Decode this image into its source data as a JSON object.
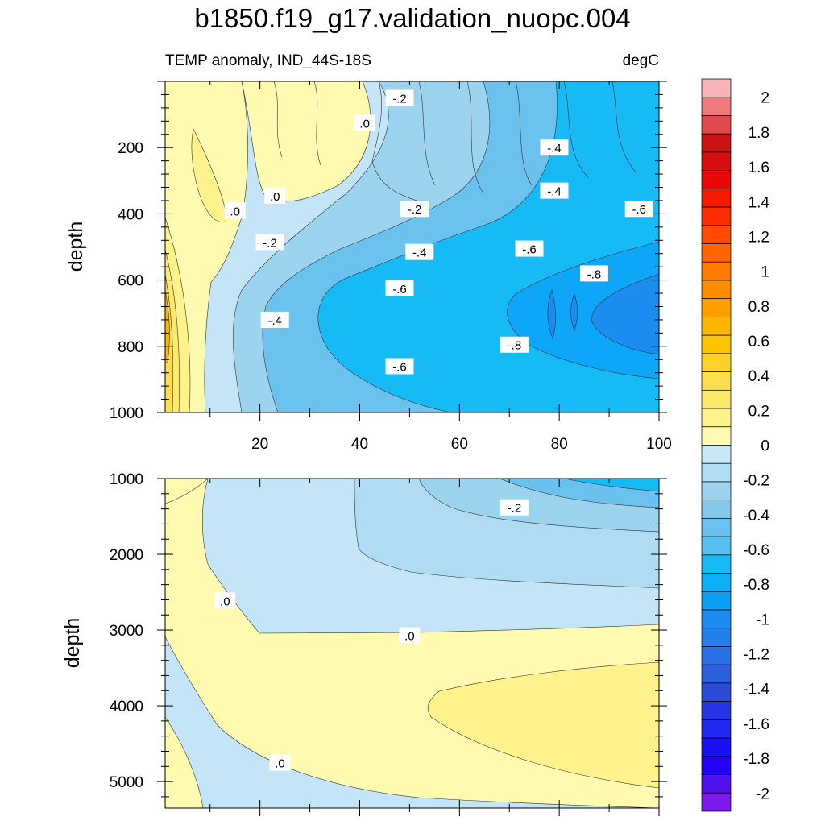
{
  "title": "b1850.f19_g17.validation_nuopc.004",
  "chart_data": {
    "type": "heatmap",
    "upper_panel": {
      "left_label": "TEMP anomaly, IND_44S-18S",
      "right_label": "degC",
      "ylabel": "depth",
      "x_range": [
        1,
        100
      ],
      "y_range": [
        0,
        1000
      ],
      "y_reversed": true,
      "x_ticks": [
        20,
        40,
        60,
        80,
        100
      ],
      "x_tick_labels": [
        "20",
        "40",
        "60",
        "80",
        "100"
      ],
      "y_ticks": [
        200,
        400,
        600,
        800,
        1000
      ],
      "y_tick_labels": [
        "200",
        "400",
        "600",
        "800",
        "1000"
      ],
      "contour_labels": [
        {
          "x": 48,
          "y": 50,
          "text": "-.2"
        },
        {
          "x": 41,
          "y": 125,
          "text": ".0"
        },
        {
          "x": 79,
          "y": 200,
          "text": "-.4"
        },
        {
          "x": 15,
          "y": 390,
          "text": ".0"
        },
        {
          "x": 23,
          "y": 345,
          "text": ".0"
        },
        {
          "x": 51,
          "y": 385,
          "text": "-.2"
        },
        {
          "x": 79,
          "y": 330,
          "text": "-.4"
        },
        {
          "x": 96,
          "y": 385,
          "text": "-.6"
        },
        {
          "x": 22,
          "y": 485,
          "text": "-.2"
        },
        {
          "x": 52,
          "y": 515,
          "text": "-.4"
        },
        {
          "x": 74,
          "y": 505,
          "text": "-.6"
        },
        {
          "x": 87,
          "y": 580,
          "text": "-.8"
        },
        {
          "x": 48,
          "y": 625,
          "text": "-.6"
        },
        {
          "x": 23,
          "y": 720,
          "text": "-.4"
        },
        {
          "x": 71,
          "y": 795,
          "text": "-.8"
        },
        {
          "x": 48,
          "y": 860,
          "text": "-.6"
        }
      ]
    },
    "lower_panel": {
      "ylabel": "depth",
      "x_range": [
        1,
        100
      ],
      "y_range": [
        1000,
        5350
      ],
      "y_reversed": true,
      "y_ticks": [
        1000,
        2000,
        3000,
        4000,
        5000
      ],
      "y_tick_labels": [
        "1000",
        "2000",
        "3000",
        "4000",
        "5000"
      ],
      "contour_labels": [
        {
          "x": 71,
          "y": 1380,
          "text": "-.2"
        },
        {
          "x": 13,
          "y": 2610,
          "text": ".0"
        },
        {
          "x": 50,
          "y": 3070,
          "text": ".0"
        },
        {
          "x": 24,
          "y": 4750,
          "text": ".0"
        }
      ]
    },
    "colorbar": {
      "levels": [
        2,
        1.8,
        1.6,
        1.4,
        1.2,
        1,
        0.8,
        0.6,
        0.4,
        0.2,
        0,
        -0.2,
        -0.4,
        -0.6,
        -0.8,
        -1,
        -1.2,
        -1.4,
        -1.6,
        -1.8,
        -2
      ],
      "labels": [
        "2",
        "1.8",
        "1.6",
        "1.4",
        "1.2",
        "1",
        "0.8",
        "0.6",
        "0.4",
        "0.2",
        "0",
        "-0.2",
        "-0.4",
        "-0.6",
        "-0.8",
        "-1",
        "-1.2",
        "-1.4",
        "-1.6",
        "-1.8",
        "-2"
      ],
      "colors": [
        "#F8B5B8",
        "#EE7A7C",
        "#E04A4E",
        "#CC1414",
        "#D80E0E",
        "#E80808",
        "#F51A00",
        "#FF2C00",
        "#FF4A00",
        "#FF6400",
        "#FF7C00",
        "#FF8C00",
        "#FFA000",
        "#FFB600",
        "#FFC400",
        "#FCD12A",
        "#FDDE4E",
        "#FEE96C",
        "#FEF28C",
        "#FEFAB0",
        "#C8E8F7",
        "#B0DCF3",
        "#9CD3EF",
        "#86C8EC",
        "#6CC2EE",
        "#56C0F3",
        "#16BAF5",
        "#0DB0F8",
        "#0C9FF5",
        "#1A8CF0",
        "#2480EC",
        "#2A70E6",
        "#2C60DD",
        "#2C4CD8",
        "#2636E5",
        "#1E26F0",
        "#1A10F6",
        "#2400F6",
        "#4E10EC",
        "#7C1CEC"
      ]
    }
  }
}
